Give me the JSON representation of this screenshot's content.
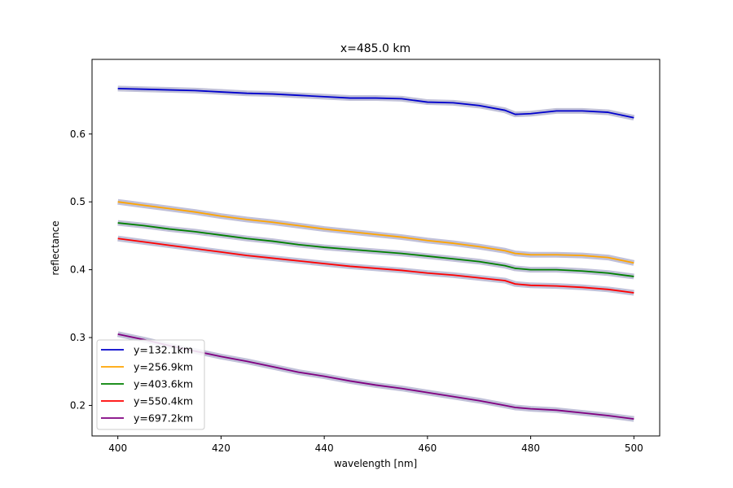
{
  "chart_data": {
    "type": "line",
    "title": "x=485.0 km",
    "xlabel": "wavelength [nm]",
    "ylabel": "reflectance",
    "xlim": [
      395,
      505
    ],
    "ylim": [
      0.155,
      0.71
    ],
    "xticks": [
      400,
      420,
      440,
      460,
      480,
      500
    ],
    "xtick_labels": [
      "400",
      "420",
      "440",
      "460",
      "480",
      "500"
    ],
    "yticks": [
      0.2,
      0.3,
      0.4,
      0.5,
      0.6
    ],
    "ytick_labels": [
      "0.2",
      "0.3",
      "0.4",
      "0.5",
      "0.6"
    ],
    "grid": false,
    "legend_position": "lower-left",
    "uncertainty_band": true,
    "band_color": "#c0c0d8",
    "x": [
      400,
      405,
      410,
      415,
      420,
      425,
      430,
      435,
      440,
      445,
      450,
      455,
      460,
      465,
      470,
      475,
      477,
      480,
      485,
      490,
      495,
      500
    ],
    "series": [
      {
        "name": "y=132.1km",
        "color": "#0000cc",
        "values": [
          0.667,
          0.666,
          0.665,
          0.664,
          0.662,
          0.66,
          0.659,
          0.657,
          0.655,
          0.653,
          0.653,
          0.652,
          0.647,
          0.646,
          0.642,
          0.635,
          0.629,
          0.63,
          0.634,
          0.634,
          0.632,
          0.624
        ]
      },
      {
        "name": "y=256.9km",
        "color": "#ffa500",
        "values": [
          0.5,
          0.495,
          0.49,
          0.485,
          0.479,
          0.474,
          0.47,
          0.465,
          0.46,
          0.456,
          0.452,
          0.448,
          0.443,
          0.439,
          0.434,
          0.428,
          0.424,
          0.422,
          0.422,
          0.421,
          0.418,
          0.41
        ]
      },
      {
        "name": "y=403.6km",
        "color": "#008000",
        "values": [
          0.469,
          0.465,
          0.46,
          0.456,
          0.451,
          0.446,
          0.442,
          0.437,
          0.433,
          0.43,
          0.427,
          0.424,
          0.42,
          0.416,
          0.412,
          0.406,
          0.402,
          0.4,
          0.4,
          0.398,
          0.395,
          0.39
        ]
      },
      {
        "name": "y=550.4km",
        "color": "#ff0000",
        "values": [
          0.446,
          0.441,
          0.436,
          0.431,
          0.426,
          0.421,
          0.417,
          0.413,
          0.409,
          0.405,
          0.402,
          0.399,
          0.395,
          0.392,
          0.388,
          0.384,
          0.379,
          0.377,
          0.376,
          0.374,
          0.371,
          0.366
        ]
      },
      {
        "name": "y=697.2km",
        "color": "#800080",
        "values": [
          0.305,
          0.297,
          0.288,
          0.28,
          0.272,
          0.265,
          0.257,
          0.249,
          0.243,
          0.236,
          0.23,
          0.225,
          0.219,
          0.213,
          0.207,
          0.2,
          0.197,
          0.195,
          0.193,
          0.189,
          0.185,
          0.18
        ]
      }
    ]
  }
}
